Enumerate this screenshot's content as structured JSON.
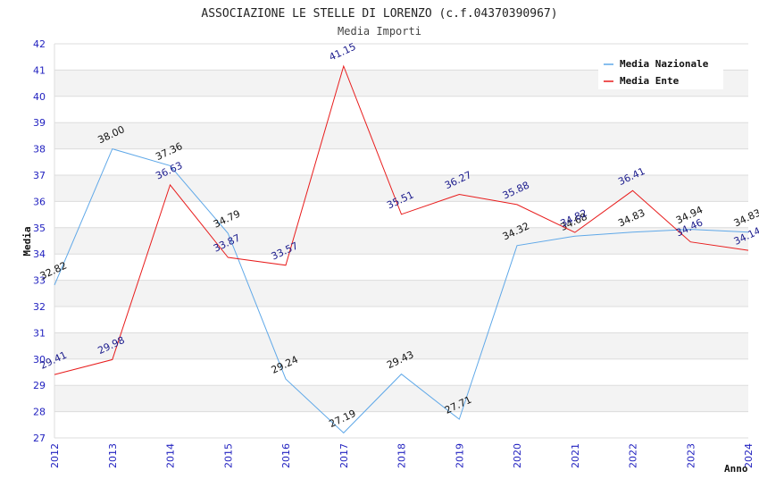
{
  "chart_data": {
    "type": "line",
    "title": "ASSOCIAZIONE LE STELLE DI LORENZO (c.f.04370390967)",
    "subtitle": "Media Importi",
    "xlabel": "Anno",
    "ylabel": "Media",
    "categories": [
      "2012",
      "2013",
      "2014",
      "2015",
      "2016",
      "2017",
      "2018",
      "2019",
      "2020",
      "2021",
      "2022",
      "2023",
      "2024"
    ],
    "ylim": [
      27,
      42
    ],
    "yticks": [
      "27",
      "28",
      "29",
      "30",
      "31",
      "32",
      "33",
      "34",
      "35",
      "36",
      "37",
      "38",
      "39",
      "40",
      "41",
      "42"
    ],
    "grid": true,
    "legend_position": "top-right",
    "series": [
      {
        "name": "Media Nazionale",
        "color": "#5fa8e8",
        "label_color": "#111111",
        "values": [
          32.82,
          38.0,
          37.36,
          34.79,
          29.24,
          27.19,
          29.43,
          27.71,
          34.32,
          34.68,
          34.83,
          34.94,
          34.83
        ],
        "labels": [
          "32.82",
          "38.00",
          "37.36",
          "34.79",
          "29.24",
          "27.19",
          "29.43",
          "27.71",
          "34.32",
          "34.68",
          "34.83",
          "34.94",
          "34.83"
        ]
      },
      {
        "name": "Media Ente",
        "color": "#e81c1c",
        "label_color": "#1a1a8c",
        "values": [
          29.41,
          29.98,
          36.63,
          33.87,
          33.57,
          41.15,
          35.51,
          36.27,
          35.88,
          34.82,
          36.41,
          34.46,
          34.14
        ],
        "labels": [
          "29.41",
          "29.98",
          "36.63",
          "33.87",
          "33.57",
          "41.15",
          "35.51",
          "36.27",
          "35.88",
          "34.82",
          "36.41",
          "34.46",
          "34.14"
        ]
      }
    ]
  }
}
